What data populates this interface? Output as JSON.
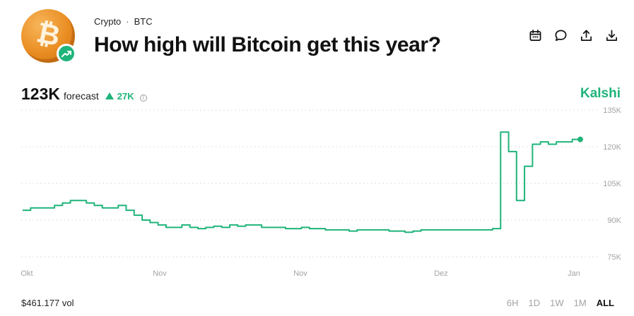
{
  "header": {
    "breadcrumb_category": "Crypto",
    "breadcrumb_separator": "·",
    "breadcrumb_ticker": "BTC",
    "title": "How high will Bitcoin get this year?",
    "logo_icon": "bitcoin-coin-icon",
    "badge_icon": "trending-up-icon",
    "actions": [
      "calendar-icon",
      "comment-icon",
      "share-icon",
      "download-icon"
    ]
  },
  "summary": {
    "value": "123K",
    "label": "forecast",
    "change": "27K",
    "change_direction": "up",
    "info_icon": "info-icon"
  },
  "brand": "Kalshi",
  "colors": {
    "accent": "#1fb47a",
    "coin": "#e98d22",
    "muted": "#a3a3a3"
  },
  "chart_data": {
    "type": "line",
    "title": "",
    "xlabel": "",
    "ylabel": "",
    "x_tick_labels": [
      "Okt",
      "Nov",
      "Nov",
      "Dez",
      "Jan"
    ],
    "y_tick_labels": [
      "135K",
      "120K",
      "105K",
      "90K",
      "75K"
    ],
    "ylim": [
      75000,
      135000
    ],
    "grid": true,
    "series": [
      {
        "values": [
          94000,
          95000,
          95000,
          95000,
          96000,
          97000,
          98000,
          98000,
          97000,
          96000,
          95000,
          95000,
          96000,
          94000,
          92000,
          90000,
          89000,
          88000,
          87000,
          87000,
          88000,
          87000,
          86500,
          87000,
          87500,
          87000,
          88000,
          87500,
          88000,
          88000,
          87000,
          87000,
          87000,
          86500,
          86500,
          87000,
          86500,
          86500,
          86000,
          86000,
          86000,
          85500,
          86000,
          86000,
          86000,
          86000,
          85500,
          85500,
          85000,
          85500,
          86000,
          86000,
          86000,
          86000,
          86000,
          86000,
          86000,
          86000,
          86000,
          86500,
          126000,
          118000,
          98000,
          112000,
          121000,
          122000,
          121000,
          122000,
          122000,
          123000,
          123000
        ]
      }
    ]
  },
  "footer": {
    "volume": "$461.177 vol",
    "ranges": [
      "6H",
      "1D",
      "1W",
      "1M",
      "ALL"
    ],
    "active_range": "ALL"
  }
}
